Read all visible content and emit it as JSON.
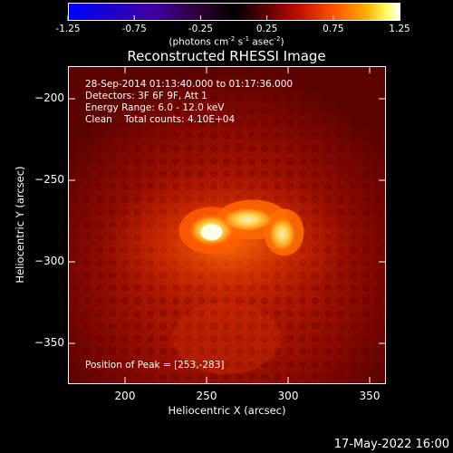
{
  "chart_data": {
    "type": "heatmap",
    "title": "Reconstructed RHESSI Image",
    "colorbar": {
      "ticks": [
        "-1.25",
        "-0.75",
        "-0.25",
        "0.25",
        "0.75",
        "1.25"
      ],
      "range": [
        -1.25,
        1.25
      ],
      "unit_parts": [
        "(photons cm",
        "-2",
        " s",
        "-1",
        " asec",
        "-2",
        ")"
      ]
    },
    "xlabel": "Heliocentric X (arcsec)",
    "ylabel": "Heliocentric Y (arcsec)",
    "xlim": [
      165,
      360
    ],
    "ylim": [
      -375,
      -180
    ],
    "xticks": [
      {
        "value": 200,
        "label": "200"
      },
      {
        "value": 250,
        "label": "250"
      },
      {
        "value": 300,
        "label": "300"
      },
      {
        "value": 350,
        "label": "350"
      }
    ],
    "yticks": [
      {
        "value": -200,
        "label": "−200"
      },
      {
        "value": -250,
        "label": "−250"
      },
      {
        "value": -300,
        "label": "−300"
      },
      {
        "value": -350,
        "label": "−350"
      }
    ],
    "info_lines": [
      "28-Sep-2014 01:13:40.000 to 01:17:36.000",
      "Detectors: 3F 6F 9F, Att 1",
      "Energy Range: 6.0 - 12.0 keV",
      "Clean    Total counts: 4.10E+04"
    ],
    "peak_label": "Position of Peak = [253,-283]",
    "peak": {
      "x": 253,
      "y": -283
    }
  },
  "footer": {
    "date": "17-May-2022 16:00"
  }
}
